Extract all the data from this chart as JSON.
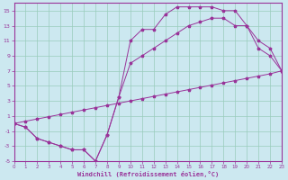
{
  "xlabel": "Windchill (Refroidissement éolien,°C)",
  "background_color": "#cce8f0",
  "grid_color": "#99ccbb",
  "line_color": "#993399",
  "xlim": [
    0,
    23
  ],
  "ylim": [
    -5,
    16
  ],
  "xticks": [
    0,
    1,
    2,
    3,
    4,
    5,
    6,
    7,
    8,
    9,
    10,
    11,
    12,
    13,
    14,
    15,
    16,
    17,
    18,
    19,
    20,
    21,
    22,
    23
  ],
  "yticks": [
    -5,
    -3,
    -1,
    1,
    3,
    5,
    7,
    9,
    11,
    13,
    15
  ],
  "curve1_x": [
    0,
    1,
    2,
    3,
    4,
    5,
    6,
    7,
    8,
    9,
    10,
    11,
    12,
    13,
    14,
    15,
    16,
    17,
    18,
    19,
    20,
    21,
    22,
    23
  ],
  "curve1_y": [
    0,
    -0.5,
    -2,
    -2.5,
    -3,
    -3.5,
    -3.5,
    -5,
    -1.5,
    3.5,
    11,
    12.5,
    12.5,
    14.5,
    15.5,
    15.5,
    15.5,
    15.5,
    15,
    15,
    13,
    10,
    9,
    7
  ],
  "curve2_x": [
    0,
    1,
    2,
    3,
    4,
    5,
    6,
    7,
    8,
    9,
    10,
    11,
    12,
    13,
    14,
    15,
    16,
    17,
    18,
    19,
    20,
    21,
    22,
    23
  ],
  "curve2_y": [
    0,
    -0.5,
    -2,
    -2.5,
    -3,
    -3.5,
    -3.5,
    -5,
    -1.5,
    3.5,
    8,
    9,
    10,
    11,
    12,
    13,
    13.5,
    14,
    14,
    13,
    13,
    11,
    10,
    7
  ],
  "curve3_x": [
    0,
    1,
    2,
    3,
    4,
    5,
    6,
    7,
    8,
    9,
    10,
    11,
    12,
    13,
    14,
    15,
    16,
    17,
    18,
    19,
    20,
    21,
    22,
    23
  ],
  "curve3_y": [
    0,
    0.3,
    0.6,
    0.9,
    1.2,
    1.5,
    1.8,
    2.1,
    2.4,
    2.7,
    3.0,
    3.3,
    3.6,
    3.9,
    4.2,
    4.5,
    4.8,
    5.1,
    5.4,
    5.7,
    6.0,
    6.3,
    6.6,
    7.0
  ]
}
